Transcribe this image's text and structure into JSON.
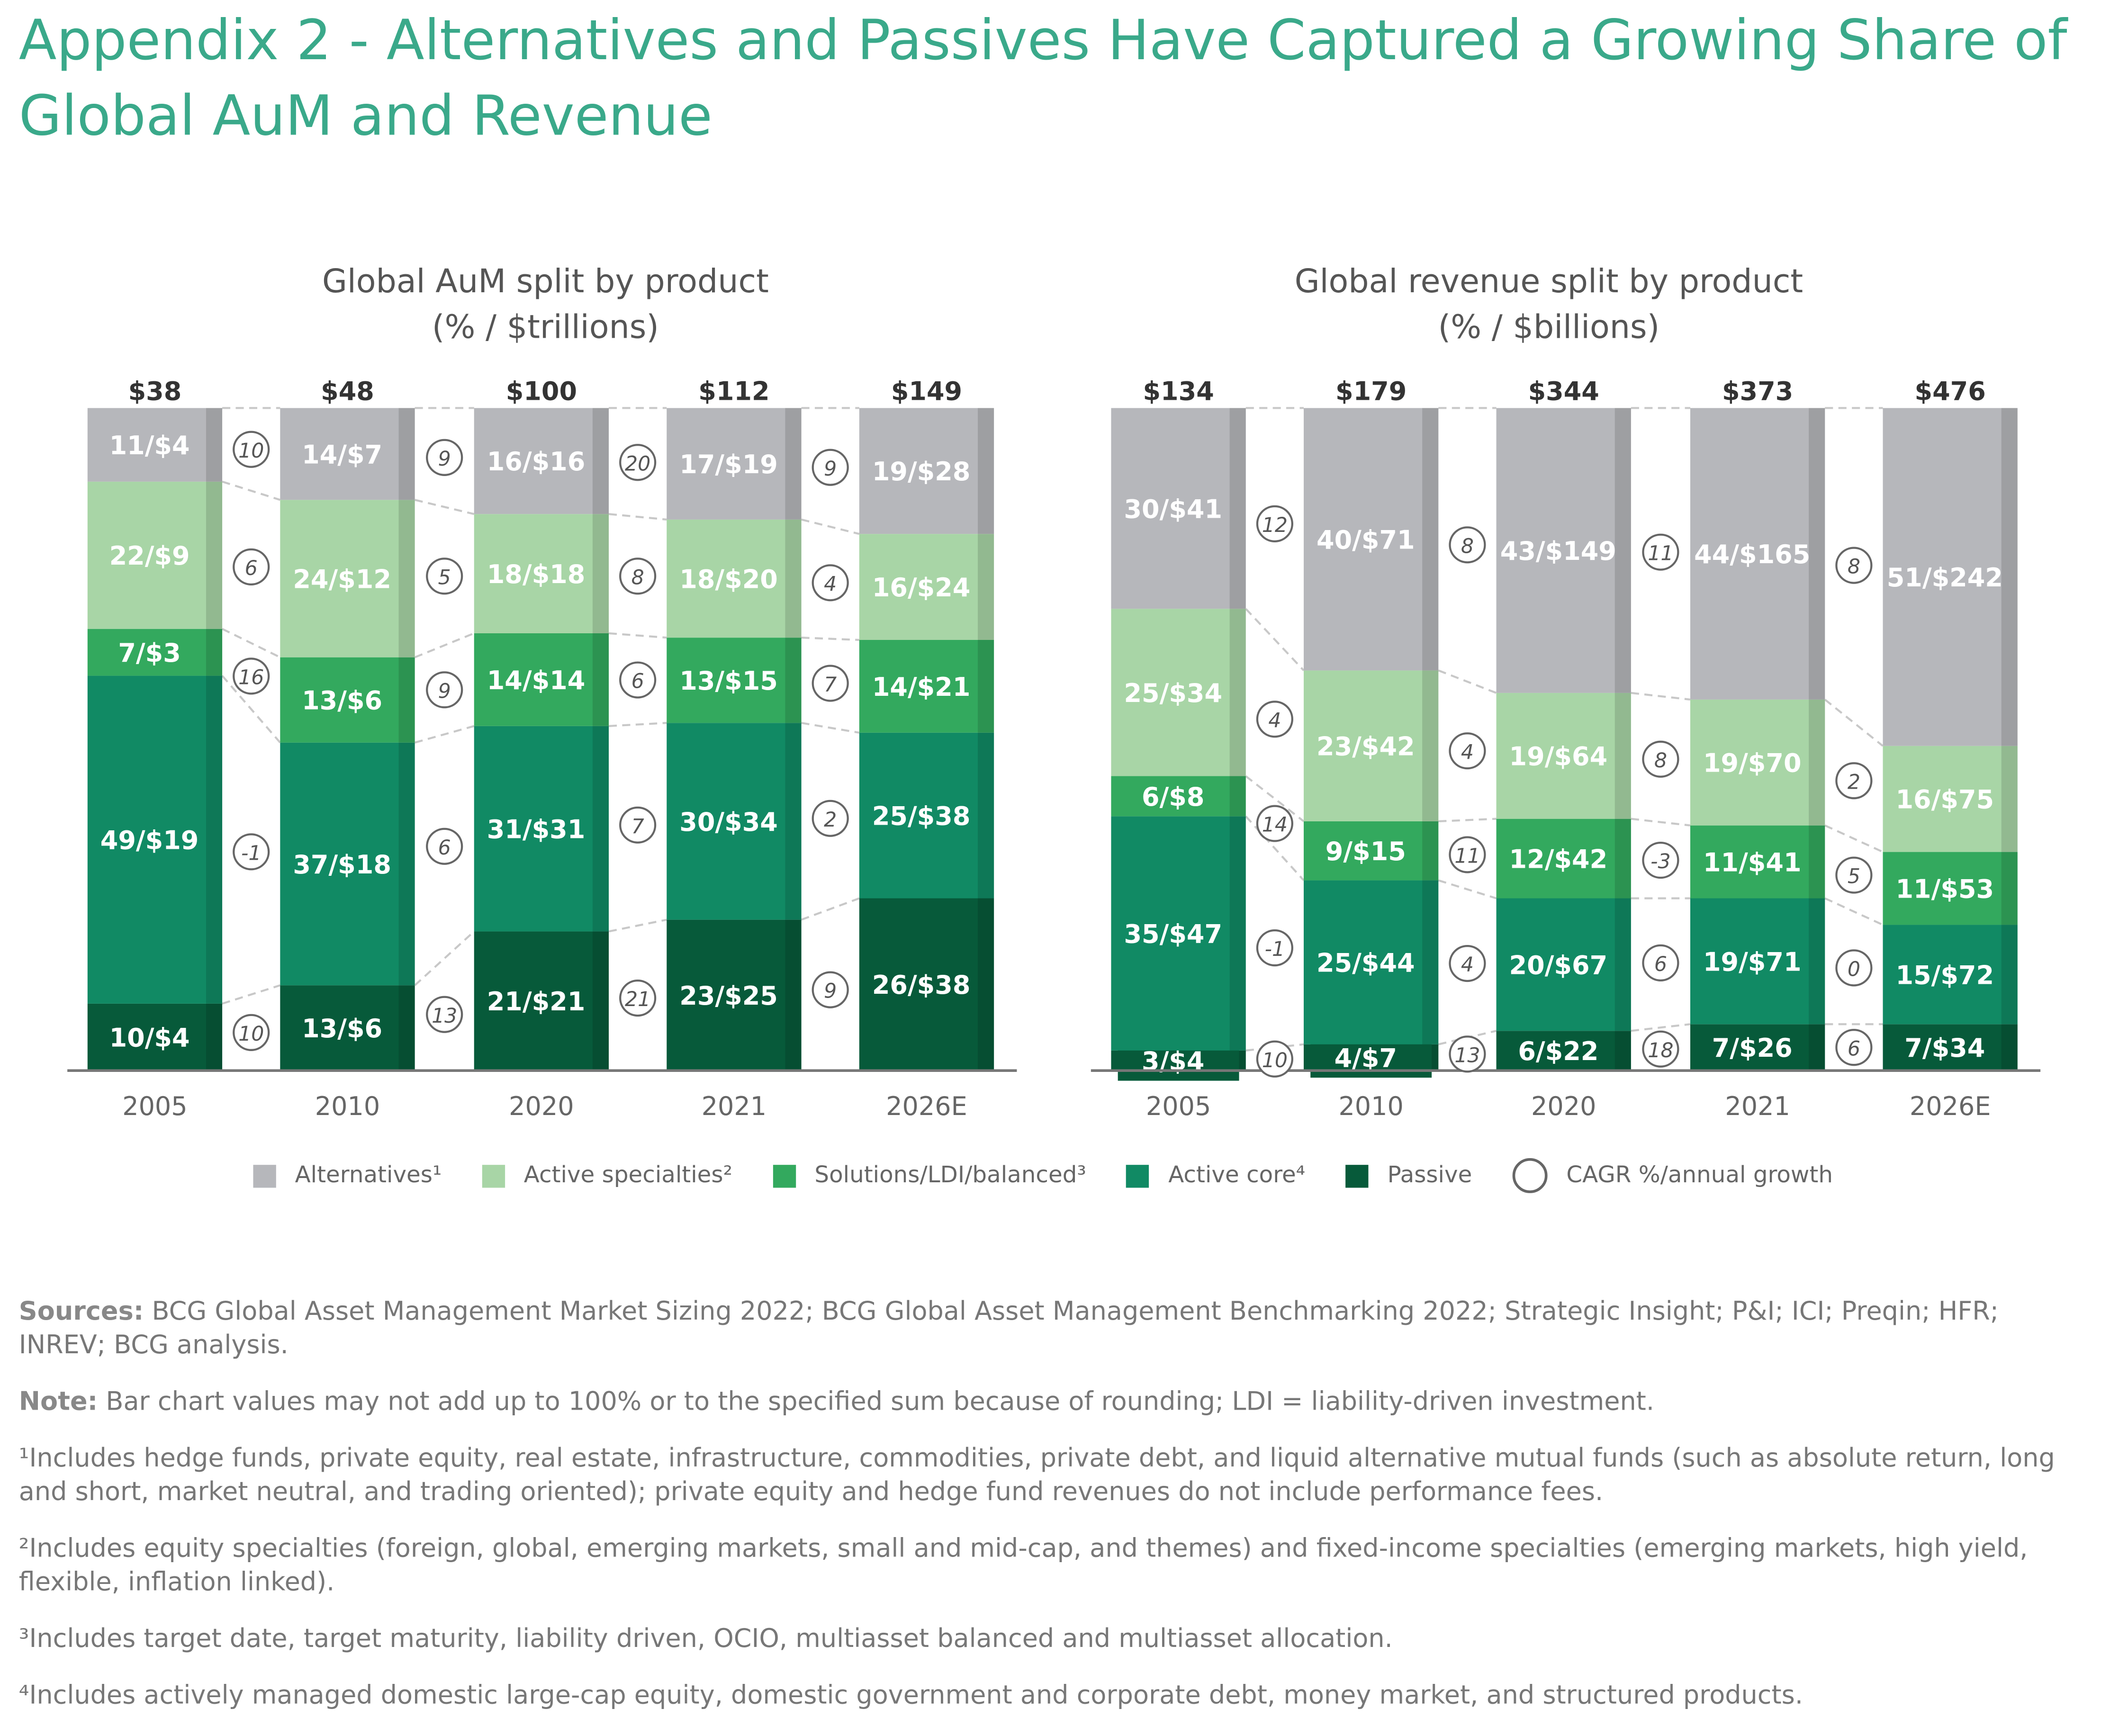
{
  "title": "Appendix 2 - Alternatives and Passives Have Captured a Growing Share of Global AuM and Revenue",
  "colors": {
    "title": "#3aa98a",
    "Alternatives": "#b6b7bb",
    "Active specialties": "#a8d5a6",
    "Solutions/LDI/balanced": "#33a95e",
    "Active core": "#118a64",
    "Passive": "#075a3a"
  },
  "legend": {
    "items": [
      "Alternatives¹",
      "Active specialties²",
      "Solutions/LDI/balanced³",
      "Active core⁴",
      "Passive"
    ],
    "cagr_label": "CAGR %/annual growth"
  },
  "chart_data": [
    {
      "type": "bar",
      "stacked": true,
      "title": "Global AuM split by product",
      "subtitle": "(% / $trillions)",
      "label_format": "percent/$amount",
      "categories": [
        "2005",
        "2010",
        "2020",
        "2021",
        "2026E"
      ],
      "totals": [
        "$38",
        "$48",
        "$100",
        "$112",
        "$149"
      ],
      "series": [
        {
          "name": "Passive",
          "percent": [
            10,
            13,
            21,
            23,
            26
          ],
          "amount": [
            4,
            6,
            21,
            25,
            38
          ],
          "cagr": [
            10,
            13,
            21,
            9
          ]
        },
        {
          "name": "Active core",
          "percent": [
            49,
            37,
            31,
            30,
            25
          ],
          "amount": [
            19,
            18,
            31,
            34,
            38
          ],
          "cagr": [
            -1,
            6,
            7,
            2
          ]
        },
        {
          "name": "Solutions/LDI/balanced",
          "percent": [
            7,
            13,
            14,
            13,
            14
          ],
          "amount": [
            3,
            6,
            14,
            15,
            21
          ],
          "cagr": [
            16,
            9,
            6,
            7
          ]
        },
        {
          "name": "Active specialties",
          "percent": [
            22,
            24,
            18,
            18,
            16
          ],
          "amount": [
            9,
            12,
            18,
            20,
            24
          ],
          "cagr": [
            6,
            5,
            8,
            4
          ]
        },
        {
          "name": "Alternatives",
          "percent": [
            11,
            14,
            16,
            17,
            19
          ],
          "amount": [
            4,
            7,
            16,
            19,
            28
          ],
          "cagr": [
            10,
            9,
            20,
            9
          ]
        }
      ]
    },
    {
      "type": "bar",
      "stacked": true,
      "title": "Global revenue split by product",
      "subtitle": "(% / $billions)",
      "label_format": "percent/$amount",
      "categories": [
        "2005",
        "2010",
        "2020",
        "2021",
        "2026E"
      ],
      "totals": [
        "$134",
        "$179",
        "$344",
        "$373",
        "$476"
      ],
      "series": [
        {
          "name": "Passive",
          "percent": [
            3,
            4,
            6,
            7,
            7
          ],
          "amount": [
            4,
            7,
            22,
            26,
            34
          ],
          "cagr": [
            10,
            13,
            18,
            6
          ]
        },
        {
          "name": "Active core",
          "percent": [
            35,
            25,
            20,
            19,
            15
          ],
          "amount": [
            47,
            44,
            67,
            71,
            72
          ],
          "cagr": [
            -1,
            4,
            6,
            0
          ]
        },
        {
          "name": "Solutions/LDI/balanced",
          "percent": [
            6,
            9,
            12,
            11,
            11
          ],
          "amount": [
            8,
            15,
            42,
            41,
            53
          ],
          "cagr": [
            14,
            11,
            -3,
            5
          ]
        },
        {
          "name": "Active specialties",
          "percent": [
            25,
            23,
            19,
            19,
            16
          ],
          "amount": [
            34,
            42,
            64,
            70,
            75
          ],
          "cagr": [
            4,
            4,
            8,
            2
          ]
        },
        {
          "name": "Alternatives",
          "percent": [
            30,
            40,
            43,
            44,
            51
          ],
          "amount": [
            41,
            71,
            149,
            165,
            242
          ],
          "cagr": [
            12,
            8,
            11,
            8
          ]
        }
      ]
    }
  ],
  "notes": {
    "sources_label": "Sources:",
    "sources": "BCG Global Asset Management Market Sizing 2022; BCG Global Asset Management Benchmarking 2022; Strategic Insight; P&I; ICI; Preqin; HFR; INREV; BCG analysis.",
    "note_label": "Note:",
    "note": "Bar chart values may not add up to 100% or to the specified sum because of rounding; LDI = liability-driven investment.",
    "footnotes": [
      "¹Includes hedge funds, private equity, real estate, infrastructure, commodities, private debt, and liquid alternative mutual funds (such as absolute return, long and short, market neutral, and trading oriented); private equity and hedge fund revenues do not include performance fees.",
      "²Includes equity specialties (foreign, global, emerging markets, small and mid-cap, and themes) and fixed-income specialties (emerging markets, high yield, flexible, inflation linked).",
      "³Includes target date, target maturity, liability driven, OCIO, multiasset balanced and multiasset allocation.",
      "⁴Includes actively managed domestic large-cap equity, domestic government and corporate debt, money market, and structured products."
    ]
  }
}
